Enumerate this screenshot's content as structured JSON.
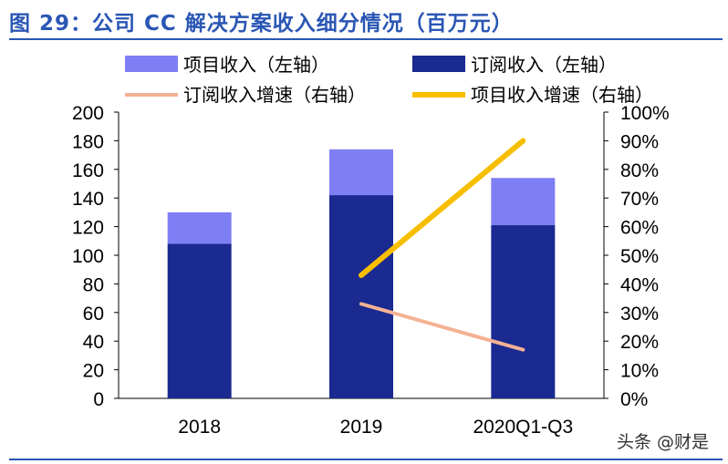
{
  "title": "图 29：公司 CC 解决方案收入细分情况（百万元）",
  "watermark": "头条 @财是",
  "colors": {
    "project_revenue": "#7f7ff5",
    "subscription_revenue": "#1a2a90",
    "subscription_growth": "#f4b294",
    "project_growth": "#f7be00",
    "title": "#2a56b4"
  },
  "chart_data": {
    "type": "bar",
    "stacked": true,
    "categories": [
      "2018",
      "2019",
      "2020Q1-Q3"
    ],
    "series": [
      {
        "name": "订阅收入（左轴）",
        "axis": "left",
        "type": "bar",
        "values": [
          108,
          142,
          121
        ]
      },
      {
        "name": "项目收入（左轴）",
        "axis": "left",
        "type": "bar",
        "values": [
          22,
          32,
          33
        ]
      },
      {
        "name": "订阅收入增速（右轴）",
        "axis": "right",
        "type": "line",
        "values": [
          null,
          0.33,
          0.17
        ]
      },
      {
        "name": "项目收入增速（右轴）",
        "axis": "right",
        "type": "line",
        "values": [
          null,
          0.43,
          0.9
        ]
      }
    ],
    "y_left": {
      "ylim": [
        0,
        200
      ],
      "ticks": [
        "0",
        "20",
        "40",
        "60",
        "80",
        "100",
        "120",
        "140",
        "160",
        "180",
        "200"
      ]
    },
    "y_right": {
      "ylim": [
        0,
        1
      ],
      "ticks": [
        "0%",
        "10%",
        "20%",
        "30%",
        "40%",
        "50%",
        "60%",
        "70%",
        "80%",
        "90%",
        "100%"
      ]
    },
    "legend_placement": "top",
    "legend": [
      {
        "label": "项目收入（左轴）",
        "marker": "box",
        "series": 1
      },
      {
        "label": "订阅收入（左轴）",
        "marker": "box",
        "series": 0
      },
      {
        "label": "订阅收入增速（右轴）",
        "marker": "line",
        "series": 2
      },
      {
        "label": "项目收入增速（右轴）",
        "marker": "line",
        "series": 3
      }
    ],
    "grid": false
  }
}
